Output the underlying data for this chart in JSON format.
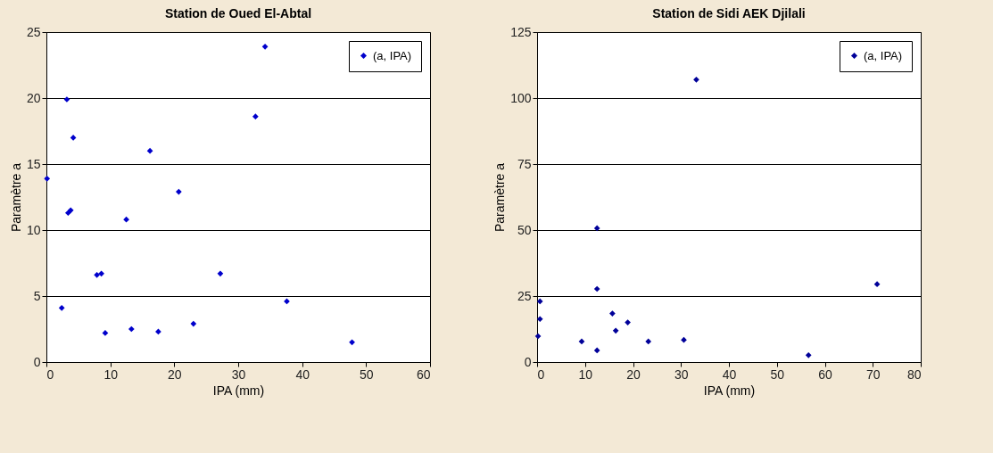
{
  "chart_data": [
    {
      "type": "scatter",
      "title": "Station de Oued El-Abtal",
      "xlabel": "IPA (mm)",
      "ylabel": "Paramètre  a",
      "xlim": [
        0,
        60
      ],
      "xticks": [
        0,
        10,
        20,
        30,
        40,
        50,
        60
      ],
      "ylim": [
        0,
        25
      ],
      "yticks": [
        0,
        5,
        10,
        15,
        20,
        25
      ],
      "grid": "y",
      "legend": "top right",
      "marker": "diamond",
      "series": [
        {
          "name": "(a, IPA)",
          "color": "#0000cc",
          "x": [
            0.1,
            2.4,
            3.2,
            3.4,
            3.8,
            4.2,
            7.9,
            8.6,
            9.2,
            12.5,
            13.3,
            16.2,
            17.5,
            20.7,
            23.0,
            27.2,
            32.7,
            34.2,
            37.6,
            47.8
          ],
          "values": [
            13.9,
            4.1,
            19.9,
            11.3,
            11.5,
            17.0,
            6.6,
            6.7,
            2.2,
            10.8,
            2.5,
            16.0,
            2.3,
            12.9,
            2.9,
            6.7,
            18.6,
            23.9,
            4.6,
            1.5
          ]
        }
      ]
    },
    {
      "type": "scatter",
      "title": "Station de Sidi AEK Djilali",
      "xlabel": "IPA (mm)",
      "ylabel": "Paramètre  a",
      "xlim": [
        0,
        80
      ],
      "xticks": [
        0,
        10,
        20,
        30,
        40,
        50,
        60,
        70,
        80
      ],
      "ylim": [
        0,
        125
      ],
      "yticks": [
        0,
        25,
        50,
        75,
        100,
        125
      ],
      "grid": "y",
      "legend": "top right",
      "marker": "diamond",
      "series": [
        {
          "name": "(a, IPA)",
          "color": "#000099",
          "x": [
            0.2,
            0.6,
            0.6,
            9.3,
            12.5,
            12.5,
            12.5,
            15.7,
            16.4,
            18.9,
            23.2,
            30.6,
            33.2,
            56.6,
            70.9
          ],
          "values": [
            9.8,
            23.0,
            16.3,
            7.8,
            50.7,
            27.7,
            4.4,
            18.4,
            11.9,
            15.0,
            7.8,
            8.4,
            107.0,
            2.6,
            29.5
          ]
        }
      ]
    }
  ]
}
